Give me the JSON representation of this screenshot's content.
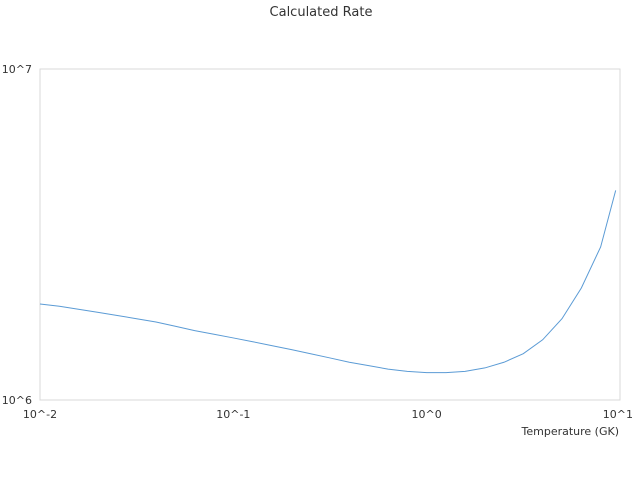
{
  "chart_data": {
    "type": "line",
    "title": "Calculated Rate",
    "xlabel": "Temperature (GK)",
    "ylabel": "",
    "xscale": "log",
    "yscale": "log",
    "xlim": [
      0.01,
      10
    ],
    "ylim": [
      1000000,
      10000000
    ],
    "x_ticks": [
      {
        "value": 0.01,
        "label": "10^-2"
      },
      {
        "value": 0.1,
        "label": "10^-1"
      },
      {
        "value": 1,
        "label": "10^0"
      },
      {
        "value": 10,
        "label": "10^1"
      }
    ],
    "y_ticks": [
      {
        "value": 1000000,
        "label": "10^6"
      },
      {
        "value": 10000000,
        "label": "10^7"
      }
    ],
    "grid": false,
    "legend": "none",
    "colors": {
      "series": "#5b9bd5",
      "frame": "#d9d9d9",
      "text": "#333333"
    },
    "series": [
      {
        "x": [
          0.01,
          0.0126,
          0.0158,
          0.02,
          0.0251,
          0.0316,
          0.0398,
          0.0501,
          0.0631,
          0.0794,
          0.1,
          0.126,
          0.158,
          0.2,
          0.251,
          0.316,
          0.398,
          0.501,
          0.631,
          0.794,
          1.0,
          1.26,
          1.58,
          2.0,
          2.51,
          3.16,
          3.98,
          5.01,
          6.31,
          7.94,
          9.5
        ],
        "values": [
          1950000,
          1920000,
          1880000,
          1840000,
          1800000,
          1760000,
          1720000,
          1670000,
          1620000,
          1580000,
          1540000,
          1500000,
          1460000,
          1420000,
          1380000,
          1340000,
          1300000,
          1270000,
          1240000,
          1220000,
          1210000,
          1210000,
          1220000,
          1250000,
          1300000,
          1380000,
          1520000,
          1760000,
          2180000,
          2900000,
          4300000
        ]
      }
    ]
  }
}
